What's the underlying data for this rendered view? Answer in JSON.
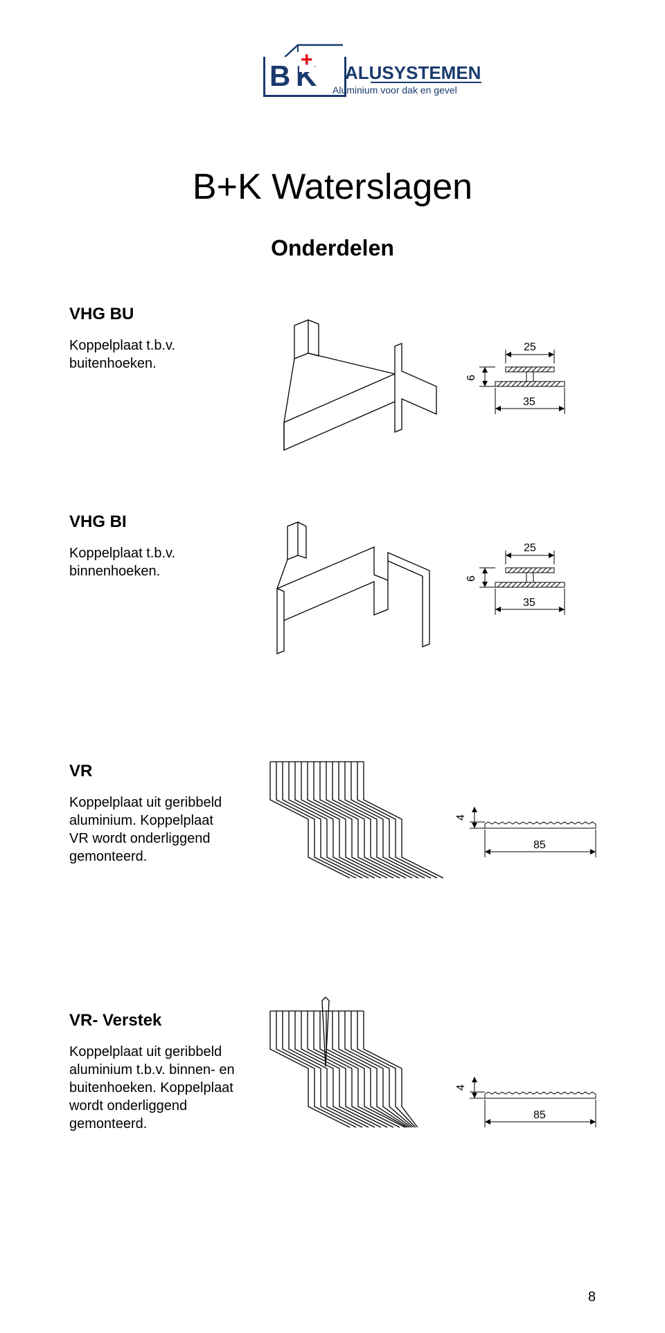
{
  "logo": {
    "bk": "B  K",
    "plus": "+",
    "alu": "ALUSYSTEMEN",
    "sub": "Aluminium voor dak en gevel"
  },
  "title": "B+K Waterslagen",
  "subtitle": "Onderdelen",
  "sections": [
    {
      "head": "VHG BU",
      "desc": "Koppelplaat  t.b.v. buitenhoeken.",
      "dims": {
        "w1": "25",
        "w2": "35",
        "h": "6"
      }
    },
    {
      "head": "VHG BI",
      "desc": "Koppelplaat t.b.v. binnenhoeken.",
      "dims": {
        "w1": "25",
        "w2": "35",
        "h": "6"
      }
    },
    {
      "head": "VR",
      "desc": "Koppelplaat uit geribbeld aluminium. Koppelplaat VR wordt onderliggend gemonteerd.",
      "dims": {
        "w": "85",
        "h": "4"
      }
    },
    {
      "head": "VR- Verstek",
      "desc": "Koppelplaat uit geribbeld aluminium t.b.v. binnen- en buitenhoeken. Koppelplaat wordt onderliggend gemonteerd.",
      "dims": {
        "w": "85",
        "h": "4"
      }
    }
  ],
  "pagenum": "8",
  "colors": {
    "brand_blue": "#1a3a6e",
    "brand_red": "#e30613",
    "text": "#000000",
    "bg": "#ffffff"
  }
}
